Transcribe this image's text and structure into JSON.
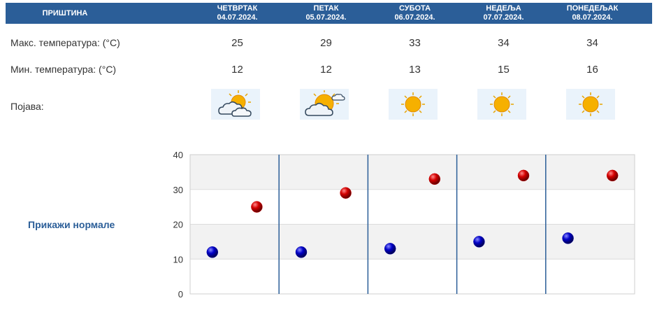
{
  "header": {
    "city": "ПРИШТИНА",
    "days": [
      {
        "name": "ЧЕТВРТАК",
        "date": "04.07.2024."
      },
      {
        "name": "ПЕТАК",
        "date": "05.07.2024."
      },
      {
        "name": "СУБОТА",
        "date": "06.07.2024."
      },
      {
        "name": "НЕДЕЉА",
        "date": "07.07.2024."
      },
      {
        "name": "ПОНЕДЕЉАК",
        "date": "08.07.2024."
      }
    ]
  },
  "rows": {
    "max_label": "Макс. температура: (°C)",
    "min_label": "Мин. температура: (°C)",
    "weather_label": "Појава:",
    "max": [
      "25",
      "29",
      "33",
      "34",
      "34"
    ],
    "min": [
      "12",
      "12",
      "13",
      "15",
      "16"
    ],
    "weather_icons": [
      "sun-behind-clouds-icon",
      "sun-behind-cloud-icon",
      "sun-icon",
      "sun-icon",
      "sun-icon"
    ]
  },
  "normals_link": "Прикажи нормале",
  "colors": {
    "header_bg": "#2b5e98",
    "max_marker": "#cc0000",
    "min_marker": "#0000aa",
    "divider": "#2b5e98"
  },
  "chart_data": {
    "type": "scatter",
    "categories": [
      "04.07.2024.",
      "05.07.2024.",
      "06.07.2024.",
      "07.07.2024.",
      "08.07.2024."
    ],
    "series": [
      {
        "values": [
          25,
          29,
          33,
          34,
          34
        ],
        "color": "#cc0000"
      },
      {
        "values": [
          12,
          12,
          13,
          15,
          16
        ],
        "color": "#0000aa"
      }
    ],
    "ylim": [
      0,
      40
    ],
    "yticks": [
      0,
      10,
      20,
      30,
      40
    ],
    "grid": true
  }
}
